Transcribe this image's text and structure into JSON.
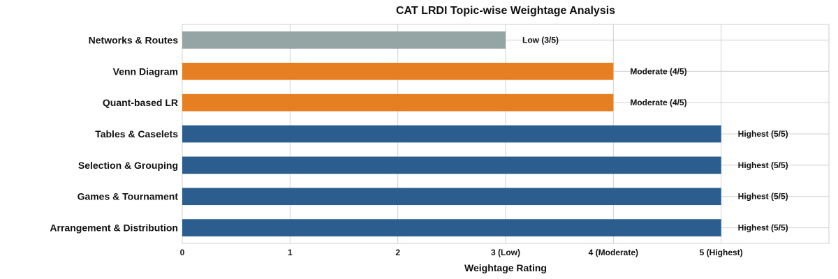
{
  "chart_data": {
    "type": "bar",
    "orientation": "horizontal",
    "title": "CAT LRDI Topic-wise Weightage Analysis",
    "xlabel": "Weightage Rating",
    "ylabel": "",
    "xlim": [
      0,
      6
    ],
    "grid": true,
    "x_ticks": [
      {
        "value": 0,
        "label": "0"
      },
      {
        "value": 1,
        "label": "1"
      },
      {
        "value": 2,
        "label": "2"
      },
      {
        "value": 3,
        "label": "3 (Low)"
      },
      {
        "value": 4,
        "label": "4 (Moderate)"
      },
      {
        "value": 5,
        "label": "5 (Highest)"
      }
    ],
    "categories": [
      "Networks & Routes",
      "Venn Diagram",
      "Quant-based LR",
      "Tables & Caselets",
      "Selection & Grouping",
      "Games & Tournament",
      "Arrangement & Distribution"
    ],
    "values": [
      3,
      4,
      4,
      5,
      5,
      5,
      5
    ],
    "data_labels": [
      "Low (3/5)",
      "Moderate (4/5)",
      "Moderate (4/5)",
      "Highest (5/5)",
      "Highest (5/5)",
      "Highest (5/5)",
      "Highest (5/5)"
    ],
    "bar_colors": [
      "#95a5a6",
      "#e67e22",
      "#e67e22",
      "#2c5d8f",
      "#2c5d8f",
      "#2c5d8f",
      "#2c5d8f"
    ]
  },
  "colors": {
    "grid": "#d0d0d0",
    "frame": "#cccccc",
    "text": "#111111"
  }
}
